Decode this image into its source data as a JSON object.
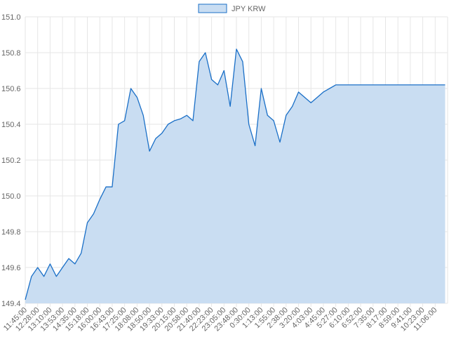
{
  "chart_data": {
    "type": "area",
    "legend": {
      "label": "JPY KRW",
      "position": "top-center"
    },
    "colors": {
      "line": "#1a6fc7",
      "fill": "#c9ddf2",
      "grid": "#e6e6e6",
      "text": "#666666"
    },
    "grid": true,
    "ylim": [
      149.4,
      151.0
    ],
    "y_ticks": [
      "149.4",
      "149.6",
      "149.8",
      "150.0",
      "150.2",
      "150.4",
      "150.6",
      "150.8",
      "151.0"
    ],
    "x_ticks": [
      "11:45:00",
      "12:28:00",
      "13:10:00",
      "13:53:00",
      "14:35:00",
      "15:18:00",
      "16:00:00",
      "16:43:00",
      "17:25:00",
      "18:08:00",
      "18:50:00",
      "19:33:00",
      "20:15:00",
      "20:58:00",
      "21:40:00",
      "22:23:00",
      "23:05:00",
      "23:48:00",
      "0:30:00",
      "1:13:00",
      "1:55:00",
      "2:38:00",
      "3:20:00",
      "4:03:00",
      "4:45:00",
      "5:27:00",
      "6:10:00",
      "6:52:00",
      "7:35:00",
      "8:17:00",
      "8:59:00",
      "9:41:00",
      "10:23:00",
      "11:06:00"
    ],
    "series": [
      {
        "name": "JPY KRW",
        "points": [
          [
            0,
            149.42
          ],
          [
            0.5,
            149.55
          ],
          [
            1,
            149.6
          ],
          [
            1.5,
            149.55
          ],
          [
            2,
            149.62
          ],
          [
            2.5,
            149.55
          ],
          [
            3,
            149.6
          ],
          [
            3.5,
            149.65
          ],
          [
            4,
            149.62
          ],
          [
            4.5,
            149.68
          ],
          [
            5,
            149.85
          ],
          [
            5.5,
            149.9
          ],
          [
            6,
            149.98
          ],
          [
            6.5,
            150.05
          ],
          [
            7,
            150.05
          ],
          [
            7.5,
            150.4
          ],
          [
            8,
            150.42
          ],
          [
            8.5,
            150.6
          ],
          [
            9,
            150.55
          ],
          [
            9.5,
            150.45
          ],
          [
            10,
            150.25
          ],
          [
            10.5,
            150.32
          ],
          [
            11,
            150.35
          ],
          [
            11.5,
            150.4
          ],
          [
            12,
            150.42
          ],
          [
            12.5,
            150.43
          ],
          [
            13,
            150.45
          ],
          [
            13.5,
            150.42
          ],
          [
            14,
            150.75
          ],
          [
            14.5,
            150.8
          ],
          [
            15,
            150.65
          ],
          [
            15.5,
            150.62
          ],
          [
            16,
            150.7
          ],
          [
            16.5,
            150.5
          ],
          [
            17,
            150.82
          ],
          [
            17.5,
            150.75
          ],
          [
            18,
            150.4
          ],
          [
            18.5,
            150.28
          ],
          [
            19,
            150.6
          ],
          [
            19.5,
            150.45
          ],
          [
            20,
            150.42
          ],
          [
            20.5,
            150.3
          ],
          [
            21,
            150.45
          ],
          [
            21.5,
            150.5
          ],
          [
            22,
            150.58
          ],
          [
            22.5,
            150.55
          ],
          [
            23,
            150.52
          ],
          [
            23.5,
            150.55
          ],
          [
            24,
            150.58
          ],
          [
            24.5,
            150.6
          ],
          [
            25,
            150.62
          ],
          [
            25.5,
            150.62
          ],
          [
            26,
            150.62
          ],
          [
            27,
            150.62
          ],
          [
            28,
            150.62
          ],
          [
            29,
            150.62
          ],
          [
            30,
            150.62
          ],
          [
            31,
            150.62
          ],
          [
            32,
            150.62
          ],
          [
            33,
            150.62
          ],
          [
            33.8,
            150.62
          ]
        ]
      }
    ]
  }
}
